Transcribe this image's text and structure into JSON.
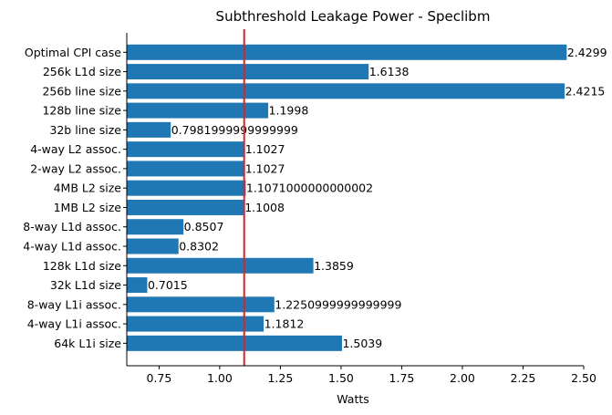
{
  "chart_data": {
    "type": "bar",
    "orientation": "horizontal",
    "title": "Subthreshold Leakage Power - Speclibm",
    "xlabel": "Watts",
    "ylabel": "",
    "categories": [
      "Optimal CPI case",
      "256k L1d size",
      "256b line size",
      "128b line size",
      "32b line size",
      "4-way L2 assoc.",
      "2-way L2 assoc.",
      "4MB L2 size",
      "1MB L2 size",
      "8-way L1d assoc.",
      "4-way L1d assoc.",
      "128k L1d size",
      "32k L1d size",
      "8-way L1i assoc.",
      "4-way L1i assoc.",
      "64k L1i size"
    ],
    "values": [
      2.4299,
      1.6138,
      2.4215,
      1.1998,
      0.7981999999999999,
      1.1027,
      1.1027,
      1.1071000000000002,
      1.1008,
      0.8507,
      0.8302,
      1.3859,
      0.7015,
      1.2250999999999999,
      1.1812,
      1.5039
    ],
    "value_labels": [
      "2.4299",
      "1.6138",
      "2.4215",
      "1.1998",
      "0.7981999999999999",
      "1.1027",
      "1.1027",
      "1.1071000000000002",
      "1.1008",
      "0.8507",
      "0.8302",
      "1.3859",
      "0.7015",
      "1.2250999999999999",
      "1.1812",
      "1.5039"
    ],
    "xlim": [
      0.617,
      2.5
    ],
    "xticks": [
      0.75,
      1.0,
      1.25,
      1.5,
      1.75,
      2.0,
      2.25,
      2.5
    ],
    "xtick_labels": [
      "0.75",
      "1.00",
      "1.25",
      "1.50",
      "1.75",
      "2.00",
      "2.25",
      "2.50"
    ],
    "reference_line": {
      "x": 1.1008,
      "color": "#d62728"
    },
    "bar_color": "#1f77b4",
    "grid": false,
    "legend": "none"
  }
}
